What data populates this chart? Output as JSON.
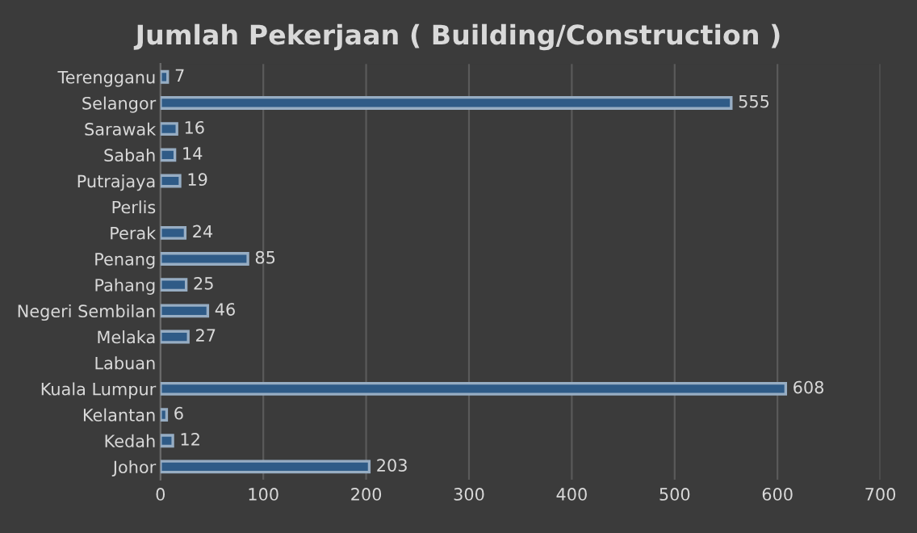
{
  "chart_data": {
    "type": "bar",
    "orientation": "horizontal",
    "title": "Jumlah Pekerjaan ( Building/Construction )",
    "categories": [
      "Terengganu",
      "Selangor",
      "Sarawak",
      "Sabah",
      "Putrajaya",
      "Perlis",
      "Perak",
      "Penang",
      "Pahang",
      "Negeri Sembilan",
      "Melaka",
      "Labuan",
      "Kuala Lumpur",
      "Kelantan",
      "Kedah",
      "Johor"
    ],
    "values": [
      7,
      555,
      16,
      14,
      19,
      null,
      24,
      85,
      25,
      46,
      27,
      null,
      608,
      6,
      12,
      203
    ],
    "color": "#2f5b87",
    "xlim": [
      0,
      700
    ],
    "xticks": [
      0,
      100,
      200,
      300,
      400,
      500,
      600,
      700
    ],
    "grid": "x",
    "data_labels": true
  }
}
